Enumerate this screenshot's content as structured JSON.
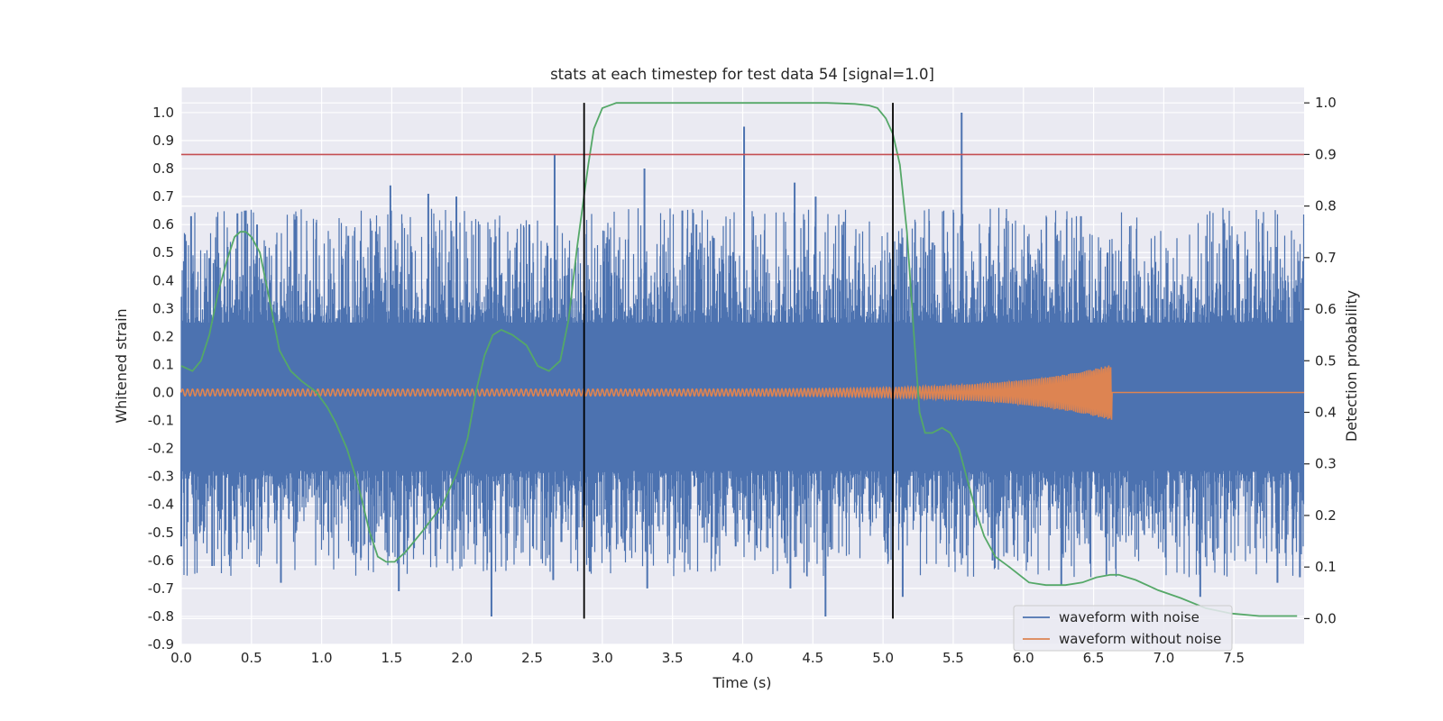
{
  "chart_data": {
    "type": "line",
    "title": "stats at each timestep for test data 54 [signal=1.0]",
    "xlabel": "Time (s)",
    "ylabel_left": "Whitened strain",
    "ylabel_right": "Detection probability",
    "xlim": [
      0.0,
      8.0
    ],
    "ylim_left": [
      -0.9,
      1.09
    ],
    "ylim_right": [
      -0.05,
      1.03
    ],
    "x_ticks": [
      "0.0",
      "0.5",
      "1.0",
      "1.5",
      "2.0",
      "2.5",
      "3.0",
      "3.5",
      "4.0",
      "4.5",
      "5.0",
      "5.5",
      "6.0",
      "6.5",
      "7.0",
      "7.5"
    ],
    "y_left_ticks": [
      "1.0",
      "0.9",
      "0.8",
      "0.7",
      "0.6",
      "0.5",
      "0.4",
      "0.3",
      "0.2",
      "0.1",
      "0.0",
      "-0.1",
      "-0.2",
      "-0.3",
      "-0.4",
      "-0.5",
      "-0.6",
      "-0.7",
      "-0.8",
      "-0.9"
    ],
    "y_right_ticks": [
      "1.0",
      "0.9",
      "0.8",
      "0.7",
      "0.6",
      "0.5",
      "0.4",
      "0.3",
      "0.2",
      "0.1",
      "0.0"
    ],
    "grid": true,
    "legend_position": "lower-right",
    "threshold": {
      "axis": "right",
      "y": 0.9,
      "color": "#c44e52"
    },
    "detection_window": {
      "start": 2.87,
      "end": 5.07,
      "color": "#000000"
    },
    "series": [
      {
        "name": "waveform with noise",
        "axis": "left",
        "color": "#4c72b0",
        "noise_envelope": {
          "mean_high": 0.3,
          "mean_low": -0.35
        },
        "spikes": [
          {
            "x": 0.07,
            "y": 0.63
          },
          {
            "x": 0.2,
            "y": 0.48
          },
          {
            "x": 0.33,
            "y": 0.52
          },
          {
            "x": 0.4,
            "y": 0.64
          },
          {
            "x": 0.46,
            "y": 0.65
          },
          {
            "x": 0.54,
            "y": 0.6
          },
          {
            "x": 0.82,
            "y": 0.63
          },
          {
            "x": 1.19,
            "y": 0.56
          },
          {
            "x": 1.38,
            "y": 0.49
          },
          {
            "x": 1.49,
            "y": 0.74
          },
          {
            "x": 1.76,
            "y": 0.71
          },
          {
            "x": 1.84,
            "y": 0.5
          },
          {
            "x": 1.96,
            "y": 0.7
          },
          {
            "x": 2.2,
            "y": 0.48
          },
          {
            "x": 2.48,
            "y": 0.6
          },
          {
            "x": 2.66,
            "y": 0.85
          },
          {
            "x": 3.3,
            "y": 0.8
          },
          {
            "x": 3.57,
            "y": 0.65
          },
          {
            "x": 3.67,
            "y": 0.6
          },
          {
            "x": 4.01,
            "y": 0.95
          },
          {
            "x": 4.37,
            "y": 0.75
          },
          {
            "x": 4.52,
            "y": 0.7
          },
          {
            "x": 4.72,
            "y": 0.61
          },
          {
            "x": 5.13,
            "y": 0.53
          },
          {
            "x": 5.56,
            "y": 1.0
          },
          {
            "x": 6.41,
            "y": 0.63
          },
          {
            "x": 6.6,
            "y": 0.5
          },
          {
            "x": 7.47,
            "y": 0.51
          },
          {
            "x": 7.8,
            "y": 0.52
          },
          {
            "x": 0.0,
            "y": -0.55
          },
          {
            "x": 0.22,
            "y": -0.62
          },
          {
            "x": 0.71,
            "y": -0.68
          },
          {
            "x": 1.28,
            "y": -0.59
          },
          {
            "x": 1.55,
            "y": -0.71
          },
          {
            "x": 2.21,
            "y": -0.8
          },
          {
            "x": 2.65,
            "y": -0.67
          },
          {
            "x": 2.91,
            "y": -0.64
          },
          {
            "x": 3.32,
            "y": -0.7
          },
          {
            "x": 3.95,
            "y": -0.55
          },
          {
            "x": 4.34,
            "y": -0.7
          },
          {
            "x": 4.59,
            "y": -0.8
          },
          {
            "x": 5.14,
            "y": -0.73
          },
          {
            "x": 5.78,
            "y": -0.6
          },
          {
            "x": 6.27,
            "y": -0.69
          },
          {
            "x": 7.26,
            "y": -0.73
          },
          {
            "x": 7.81,
            "y": -0.68
          },
          {
            "x": 7.97,
            "y": -0.66
          }
        ]
      },
      {
        "name": "waveform without noise",
        "axis": "left",
        "color": "#dd8452",
        "chirp": {
          "start": 0.0,
          "merger": 6.63,
          "end": 8.0,
          "amp_start": 0.012,
          "amp_merger": 0.1,
          "amp_after": 0.0
        }
      },
      {
        "name": "Detection probability",
        "axis": "right",
        "color": "#55a868",
        "x": [
          0.0,
          0.08,
          0.14,
          0.2,
          0.26,
          0.32,
          0.38,
          0.42,
          0.46,
          0.5,
          0.56,
          0.62,
          0.7,
          0.78,
          0.86,
          0.96,
          1.04,
          1.1,
          1.18,
          1.26,
          1.34,
          1.4,
          1.46,
          1.52,
          1.6,
          1.72,
          1.86,
          1.96,
          2.04,
          2.1,
          2.16,
          2.22,
          2.28,
          2.36,
          2.46,
          2.54,
          2.62,
          2.7,
          2.76,
          2.82,
          2.87,
          2.9,
          2.94,
          3.0,
          3.1,
          3.3,
          4.0,
          4.6,
          4.8,
          4.9,
          4.96,
          5.02,
          5.07,
          5.12,
          5.17,
          5.22,
          5.26,
          5.3,
          5.35,
          5.42,
          5.48,
          5.54,
          5.6,
          5.66,
          5.72,
          5.8,
          5.9,
          6.04,
          6.16,
          6.3,
          6.42,
          6.52,
          6.62,
          6.68,
          6.8,
          6.96,
          7.12,
          7.3,
          7.48,
          7.68,
          7.85,
          7.95
        ],
        "y": [
          0.49,
          0.48,
          0.5,
          0.55,
          0.63,
          0.69,
          0.74,
          0.75,
          0.75,
          0.74,
          0.71,
          0.63,
          0.52,
          0.48,
          0.46,
          0.44,
          0.41,
          0.38,
          0.33,
          0.26,
          0.17,
          0.12,
          0.11,
          0.11,
          0.13,
          0.17,
          0.22,
          0.28,
          0.35,
          0.44,
          0.51,
          0.55,
          0.56,
          0.55,
          0.53,
          0.49,
          0.48,
          0.5,
          0.58,
          0.72,
          0.82,
          0.88,
          0.95,
          0.99,
          1.0,
          1.0,
          1.0,
          1.0,
          0.998,
          0.995,
          0.99,
          0.97,
          0.94,
          0.88,
          0.75,
          0.55,
          0.4,
          0.36,
          0.36,
          0.37,
          0.36,
          0.33,
          0.27,
          0.21,
          0.16,
          0.12,
          0.1,
          0.07,
          0.065,
          0.065,
          0.07,
          0.08,
          0.085,
          0.085,
          0.075,
          0.055,
          0.04,
          0.02,
          0.01,
          0.005,
          0.005,
          0.005
        ]
      }
    ]
  }
}
